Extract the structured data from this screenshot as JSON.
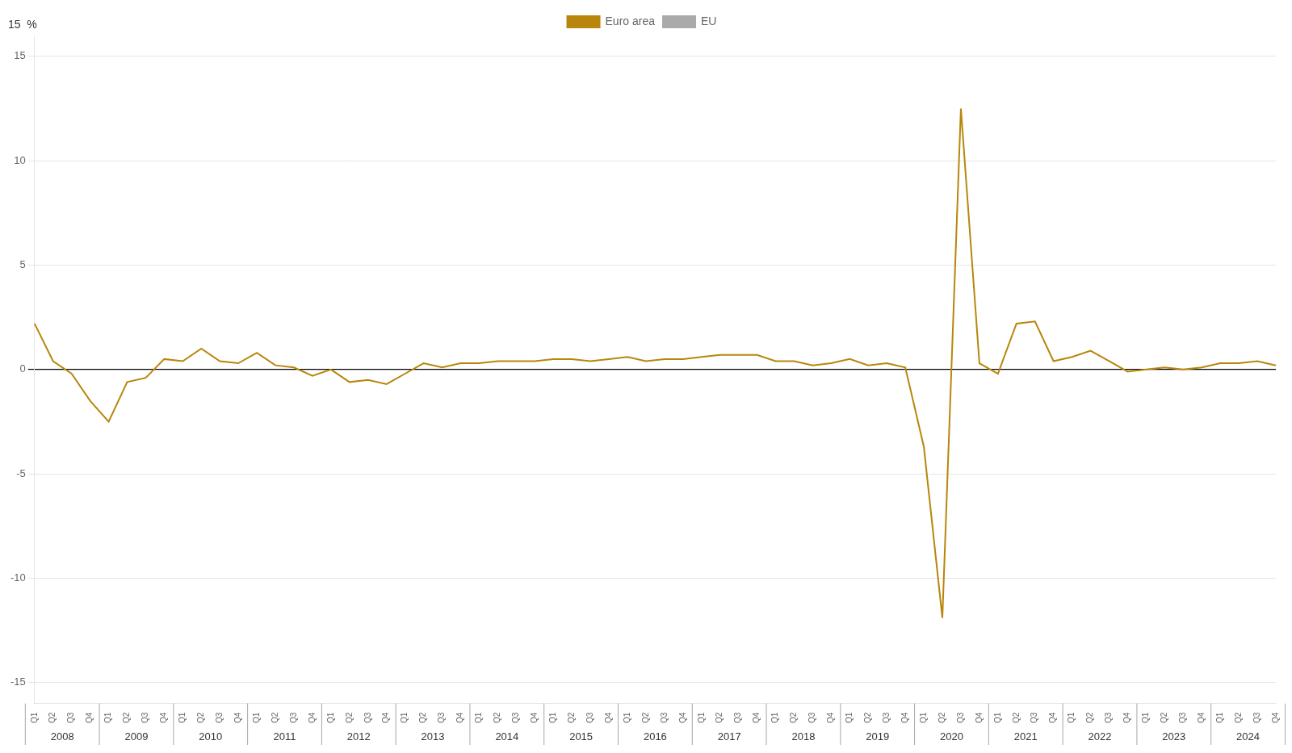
{
  "chart_data": {
    "type": "line",
    "annotations": [
      "15  %"
    ],
    "categories": [
      "Q1",
      "Q2",
      "Q3",
      "Q4",
      "Q1",
      "Q2",
      "Q3",
      "Q4",
      "Q1",
      "Q2",
      "Q3",
      "Q4",
      "Q1",
      "Q2",
      "Q3",
      "Q4",
      "Q1",
      "Q2",
      "Q3",
      "Q4",
      "Q1",
      "Q2",
      "Q3",
      "Q4",
      "Q1",
      "Q2",
      "Q3",
      "Q4",
      "Q1",
      "Q2",
      "Q3",
      "Q4",
      "Q1",
      "Q2",
      "Q3",
      "Q4",
      "Q1",
      "Q2",
      "Q3",
      "Q4",
      "Q1",
      "Q2",
      "Q3",
      "Q4",
      "Q1",
      "Q2",
      "Q3",
      "Q4",
      "Q1",
      "Q2",
      "Q3",
      "Q4",
      "Q1",
      "Q2",
      "Q3",
      "Q4",
      "Q1",
      "Q2",
      "Q3",
      "Q4",
      "Q1",
      "Q2",
      "Q3",
      "Q4",
      "Q1",
      "Q2",
      "Q3",
      "Q4"
    ],
    "category_groups": [
      "2008",
      "2009",
      "2010",
      "2011",
      "2012",
      "2013",
      "2014",
      "2015",
      "2016",
      "2017",
      "2018",
      "2019",
      "2020",
      "2021",
      "2022",
      "2023",
      "2024"
    ],
    "series": [
      {
        "name": "Euro area",
        "color": "#B8860B",
        "values": [
          2.2,
          0.4,
          -0.2,
          -1.5,
          -2.5,
          -0.6,
          -0.4,
          0.5,
          0.4,
          1.0,
          0.4,
          0.3,
          0.8,
          0.2,
          0.1,
          -0.3,
          0.0,
          -0.6,
          -0.5,
          -0.7,
          -0.2,
          0.3,
          0.1,
          0.3,
          0.3,
          0.4,
          0.4,
          0.4,
          0.5,
          0.5,
          0.4,
          0.5,
          0.6,
          0.4,
          0.5,
          0.5,
          0.6,
          0.7,
          0.7,
          0.7,
          0.4,
          0.4,
          0.2,
          0.3,
          0.5,
          0.2,
          0.3,
          0.1,
          -3.7,
          -11.9,
          12.5,
          0.3,
          -0.2,
          2.2,
          2.3,
          0.4,
          0.6,
          0.9,
          0.4,
          -0.1,
          0.0,
          0.1,
          0.0,
          0.1,
          0.3,
          0.3,
          0.4,
          0.2
        ]
      },
      {
        "name": "EU",
        "color": "#aaaaaa",
        "values": [
          null,
          null,
          null,
          null,
          null,
          null,
          null,
          null,
          null,
          null,
          null,
          null,
          null,
          null,
          null,
          null,
          null,
          null,
          null,
          null,
          null,
          null,
          null,
          null,
          null,
          null,
          null,
          null,
          null,
          null,
          null,
          null,
          null,
          null,
          null,
          null,
          null,
          null,
          null,
          null,
          null,
          null,
          null,
          null,
          null,
          null,
          null,
          null,
          null,
          null,
          null,
          null,
          null,
          null,
          null,
          null,
          null,
          null,
          null,
          null,
          null,
          null,
          null,
          null,
          null,
          null,
          null,
          null
        ]
      }
    ],
    "ylim": [
      -16,
      16
    ],
    "yticks": [
      -15,
      -10,
      -5,
      0,
      5,
      10,
      15
    ],
    "grid": true,
    "legend": "top"
  }
}
